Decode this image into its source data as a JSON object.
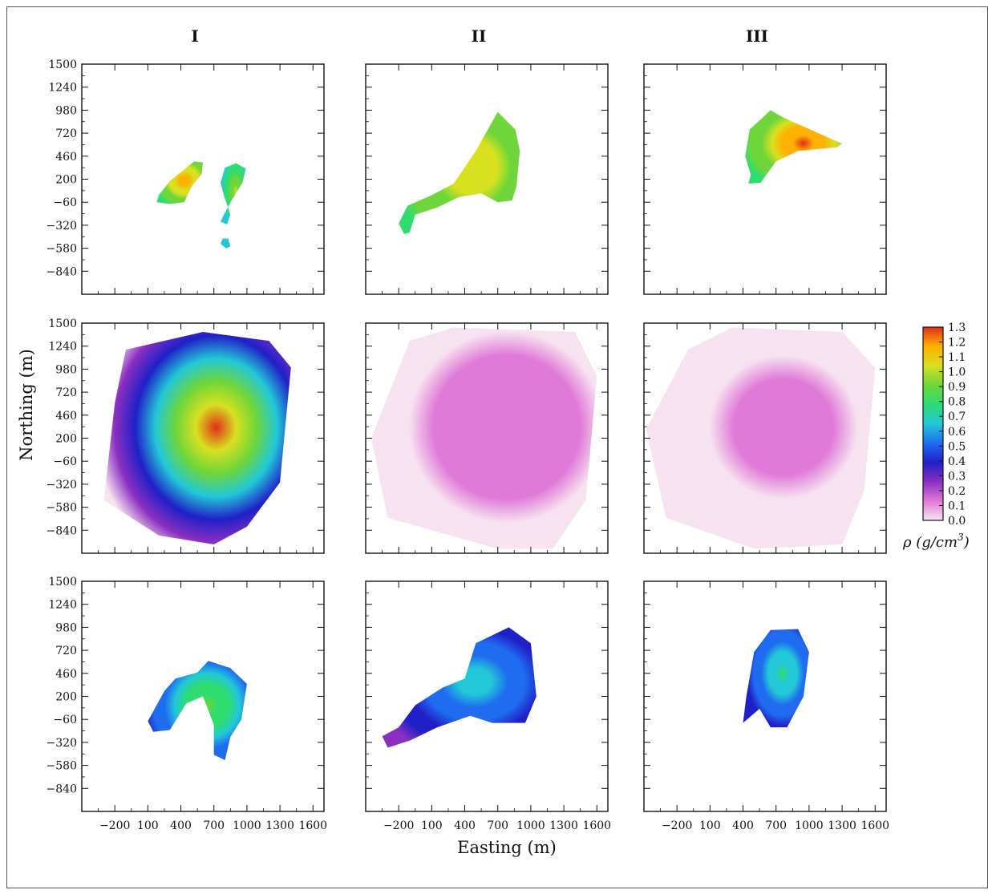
{
  "chart_data": {
    "type": "heatmap",
    "xlabel": "Easting (m)",
    "ylabel": "Northing (m)",
    "column_titles": [
      "I",
      "II",
      "III"
    ],
    "x_tick_labels": [
      "−200",
      "100",
      "400",
      "700",
      "1000",
      "1300",
      "1600"
    ],
    "x_ticks": [
      -200,
      100,
      400,
      700,
      1000,
      1300,
      1600
    ],
    "y_tick_labels": [
      "1500",
      "1240",
      "980",
      "720",
      "460",
      "200",
      "−60",
      "−320",
      "−580",
      "−840"
    ],
    "y_ticks": [
      1500,
      1240,
      980,
      720,
      460,
      200,
      -60,
      -320,
      -580,
      -840
    ],
    "xlim": [
      -500,
      1700
    ],
    "ylim": [
      -1100,
      1500
    ],
    "colorbar": {
      "title": "ρ (g/cm",
      "title_sup": "3",
      "title_end": ")",
      "tick_labels": [
        "1.3",
        "1.2",
        "1.1",
        "1.0",
        "0.9",
        "0.8",
        "0.7",
        "0.6",
        "0.5",
        "0.4",
        "0.3",
        "0.2",
        "0.1",
        "0.0"
      ],
      "ticks": [
        1.3,
        1.2,
        1.1,
        1.0,
        0.9,
        0.8,
        0.7,
        0.6,
        0.5,
        0.4,
        0.3,
        0.2,
        0.1,
        0.0
      ],
      "range": [
        0.0,
        1.3
      ],
      "colors": [
        "#f7e3f0",
        "#e07ad8",
        "#8a2fc0",
        "#2020c8",
        "#1f6cf0",
        "#22c8d8",
        "#2edc70",
        "#6ed63a",
        "#d8e020",
        "#ffb000",
        "#e03018"
      ]
    },
    "panels": [
      {
        "row": 0,
        "col": 0,
        "blobs": [
          {
            "name": "I-top-west",
            "points": [
              [
                180,
                -60
              ],
              [
                200,
                20
              ],
              [
                300,
                180
              ],
              [
                420,
                300
              ],
              [
                520,
                400
              ],
              [
                600,
                390
              ],
              [
                590,
                260
              ],
              [
                500,
                120
              ],
              [
                430,
                -60
              ],
              [
                300,
                -80
              ]
            ],
            "density": [
              0.8,
              1.2
            ]
          },
          {
            "name": "I-top-east",
            "points": [
              [
                790,
                20
              ],
              [
                760,
                160
              ],
              [
                800,
                330
              ],
              [
                900,
                380
              ],
              [
                990,
                320
              ],
              [
                960,
                160
              ],
              [
                880,
                0
              ],
              [
                790,
                -200
              ],
              [
                760,
                -280
              ],
              [
                820,
                -310
              ],
              [
                850,
                -200
              ]
            ],
            "density": [
              0.6,
              1.0
            ]
          },
          {
            "name": "I-top-south",
            "points": [
              [
                780,
                -470
              ],
              [
                760,
                -530
              ],
              [
                810,
                -580
              ],
              [
                850,
                -560
              ],
              [
                830,
                -470
              ]
            ],
            "density": [
              0.6,
              0.65
            ]
          }
        ]
      },
      {
        "row": 0,
        "col": 1,
        "blobs": [
          {
            "name": "II-top",
            "points": [
              [
                -150,
                -420
              ],
              [
                -200,
                -300
              ],
              [
                -120,
                -100
              ],
              [
                100,
                20
              ],
              [
                300,
                150
              ],
              [
                500,
                520
              ],
              [
                700,
                960
              ],
              [
                860,
                760
              ],
              [
                900,
                520
              ],
              [
                870,
                120
              ],
              [
                830,
                -40
              ],
              [
                700,
                -60
              ],
              [
                550,
                40
              ],
              [
                350,
                0
              ],
              [
                150,
                -120
              ],
              [
                -50,
                -200
              ],
              [
                -100,
                -400
              ]
            ],
            "density": [
              0.8,
              1.1
            ]
          }
        ]
      },
      {
        "row": 0,
        "col": 2,
        "blobs": [
          {
            "name": "III-top",
            "points": [
              [
                450,
                150
              ],
              [
                470,
                250
              ],
              [
                420,
                460
              ],
              [
                460,
                760
              ],
              [
                650,
                980
              ],
              [
                760,
                900
              ],
              [
                1300,
                600
              ],
              [
                1250,
                560
              ],
              [
                900,
                520
              ],
              [
                700,
                400
              ],
              [
                560,
                160
              ]
            ],
            "density": [
              0.8,
              1.3
            ]
          }
        ]
      },
      {
        "row": 1,
        "col": 0,
        "blobs": [
          {
            "name": "I-mid",
            "points": [
              [
                -200,
                600
              ],
              [
                -100,
                1200
              ],
              [
                600,
                1400
              ],
              [
                1200,
                1300
              ],
              [
                1400,
                1000
              ],
              [
                1300,
                -300
              ],
              [
                1000,
                -800
              ],
              [
                700,
                -1000
              ],
              [
                200,
                -900
              ],
              [
                -300,
                -500
              ]
            ],
            "density": [
              0.0,
              1.3
            ]
          }
        ]
      },
      {
        "row": 1,
        "col": 1,
        "blobs": [
          {
            "name": "II-mid",
            "points": [
              [
                -450,
                200
              ],
              [
                -100,
                1300
              ],
              [
                300,
                1450
              ],
              [
                1400,
                1400
              ],
              [
                1600,
                900
              ],
              [
                1500,
                -500
              ],
              [
                1200,
                -1050
              ],
              [
                700,
                -1050
              ],
              [
                -300,
                -700
              ]
            ],
            "density": [
              0.0,
              0.15
            ]
          }
        ]
      },
      {
        "row": 1,
        "col": 2,
        "blobs": [
          {
            "name": "III-mid",
            "points": [
              [
                -480,
                300
              ],
              [
                -100,
                1200
              ],
              [
                300,
                1450
              ],
              [
                1300,
                1400
              ],
              [
                1600,
                1000
              ],
              [
                1500,
                -400
              ],
              [
                1300,
                -1000
              ],
              [
                500,
                -1050
              ],
              [
                -300,
                -700
              ]
            ],
            "density": [
              0.0,
              0.1
            ]
          }
        ]
      },
      {
        "row": 2,
        "col": 0,
        "blobs": [
          {
            "name": "I-bottom",
            "points": [
              [
                100,
                -80
              ],
              [
                250,
                260
              ],
              [
                350,
                400
              ],
              [
                550,
                470
              ],
              [
                650,
                600
              ],
              [
                850,
                520
              ],
              [
                1000,
                340
              ],
              [
                950,
                -60
              ],
              [
                850,
                -260
              ],
              [
                800,
                -520
              ],
              [
                700,
                -460
              ],
              [
                700,
                -120
              ],
              [
                600,
                200
              ],
              [
                450,
                120
              ],
              [
                300,
                -180
              ],
              [
                150,
                -200
              ]
            ],
            "density": [
              0.45,
              0.85
            ]
          }
        ]
      },
      {
        "row": 2,
        "col": 1,
        "blobs": [
          {
            "name": "II-bottom",
            "points": [
              [
                -350,
                -250
              ],
              [
                -300,
                -380
              ],
              [
                -100,
                -300
              ],
              [
                150,
                -150
              ],
              [
                450,
                -20
              ],
              [
                650,
                -100
              ],
              [
                950,
                -100
              ],
              [
                1050,
                200
              ],
              [
                1000,
                800
              ],
              [
                800,
                980
              ],
              [
                500,
                800
              ],
              [
                400,
                400
              ],
              [
                200,
                300
              ],
              [
                -50,
                100
              ],
              [
                -200,
                -150
              ]
            ],
            "density": [
              0.3,
              0.7
            ]
          }
        ]
      },
      {
        "row": 2,
        "col": 2,
        "blobs": [
          {
            "name": "III-bottom",
            "points": [
              [
                400,
                -100
              ],
              [
                430,
                200
              ],
              [
                500,
                700
              ],
              [
                650,
                950
              ],
              [
                900,
                960
              ],
              [
                1000,
                700
              ],
              [
                950,
                200
              ],
              [
                800,
                -150
              ],
              [
                650,
                -150
              ],
              [
                550,
                60
              ]
            ],
            "density": [
              0.35,
              0.75
            ]
          }
        ]
      }
    ]
  }
}
